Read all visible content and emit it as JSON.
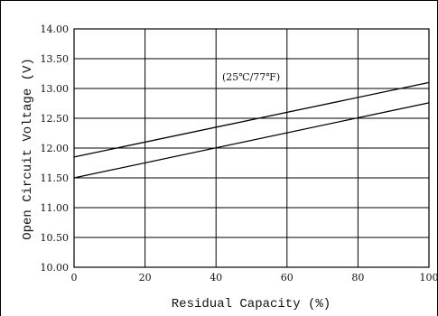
{
  "chart_data": {
    "type": "line",
    "title": "",
    "annotation": "(25℃/77℉)",
    "xlabel": "Residual Capacity (%)",
    "ylabel": "Open Circuit Voltage (V)",
    "xlim": [
      0,
      100
    ],
    "ylim": [
      10.0,
      14.0
    ],
    "x_ticks": [
      "0",
      "20",
      "40",
      "60",
      "80",
      "100"
    ],
    "y_ticks": [
      "10.00",
      "10.50",
      "11.00",
      "11.50",
      "12.00",
      "12.50",
      "13.00",
      "13.50",
      "14.00"
    ],
    "grid": true,
    "series": [
      {
        "x": [
          0,
          100
        ],
        "y": [
          11.85,
          13.1
        ]
      },
      {
        "x": [
          0,
          100
        ],
        "y": [
          11.5,
          12.76
        ]
      }
    ],
    "colors": {
      "line": "#000000",
      "grid": "#000000",
      "background": "#ffffff"
    }
  }
}
